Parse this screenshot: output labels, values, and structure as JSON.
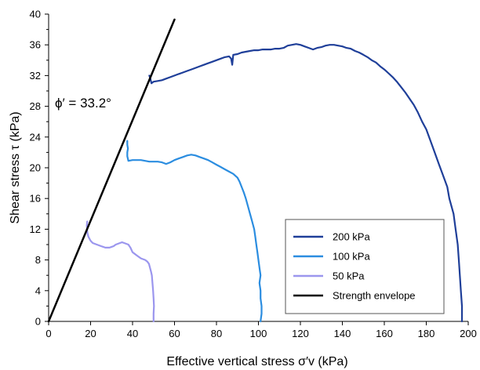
{
  "chart_data": {
    "type": "line",
    "xlabel": "Effective vertical stress σ′v (kPa)",
    "ylabel": "Shear stress τ (kPa)",
    "xlim": [
      0,
      200
    ],
    "ylim": [
      0,
      40
    ],
    "x_ticks": [
      0,
      20,
      40,
      60,
      80,
      100,
      120,
      140,
      160,
      180,
      200
    ],
    "y_ticks": [
      0,
      4,
      8,
      12,
      16,
      20,
      24,
      28,
      32,
      36,
      40
    ],
    "grid": false,
    "legend_position": "bottom-right",
    "annotation": "ϕ′ = 33.2°",
    "series": [
      {
        "name": "200 kPa",
        "color": "#1f3f99",
        "points": [
          [
            197,
            0
          ],
          [
            197,
            2
          ],
          [
            196.5,
            4
          ],
          [
            196,
            6
          ],
          [
            195.5,
            8
          ],
          [
            195,
            10
          ],
          [
            194,
            12
          ],
          [
            193,
            14
          ],
          [
            191,
            16
          ],
          [
            190,
            17.5
          ],
          [
            188,
            19
          ],
          [
            186,
            20.5
          ],
          [
            184,
            22
          ],
          [
            182,
            23.5
          ],
          [
            180,
            25
          ],
          [
            178,
            26
          ],
          [
            176,
            27.2
          ],
          [
            174,
            28.2
          ],
          [
            172,
            29
          ],
          [
            170,
            29.8
          ],
          [
            168,
            30.5
          ],
          [
            166,
            31.2
          ],
          [
            164,
            31.8
          ],
          [
            162,
            32.3
          ],
          [
            160,
            32.8
          ],
          [
            158,
            33.2
          ],
          [
            156,
            33.7
          ],
          [
            154,
            34
          ],
          [
            152,
            34.4
          ],
          [
            150,
            34.7
          ],
          [
            148,
            35
          ],
          [
            146,
            35.2
          ],
          [
            144,
            35.5
          ],
          [
            142,
            35.6
          ],
          [
            140,
            35.8
          ],
          [
            138,
            35.9
          ],
          [
            136,
            36
          ],
          [
            134,
            36
          ],
          [
            132,
            35.9
          ],
          [
            130,
            35.7
          ],
          [
            128,
            35.6
          ],
          [
            126,
            35.4
          ],
          [
            124,
            35.6
          ],
          [
            122,
            35.8
          ],
          [
            120,
            36
          ],
          [
            118,
            36.1
          ],
          [
            116,
            36
          ],
          [
            114,
            35.9
          ],
          [
            112,
            35.6
          ],
          [
            110,
            35.5
          ],
          [
            108,
            35.5
          ],
          [
            106,
            35.4
          ],
          [
            104,
            35.4
          ],
          [
            102,
            35.4
          ],
          [
            100,
            35.3
          ],
          [
            98,
            35.3
          ],
          [
            96,
            35.2
          ],
          [
            94,
            35.1
          ],
          [
            92,
            35
          ],
          [
            90,
            34.8
          ],
          [
            88,
            34.7
          ],
          [
            87.5,
            33.4
          ],
          [
            87,
            34.2
          ],
          [
            86,
            34.5
          ],
          [
            84,
            34.4
          ],
          [
            82,
            34.2
          ],
          [
            80,
            34
          ],
          [
            78,
            33.8
          ],
          [
            76,
            33.6
          ],
          [
            74,
            33.4
          ],
          [
            72,
            33.2
          ],
          [
            70,
            33
          ],
          [
            68,
            32.8
          ],
          [
            66,
            32.6
          ],
          [
            64,
            32.4
          ],
          [
            62,
            32.2
          ],
          [
            60,
            32
          ],
          [
            58,
            31.8
          ],
          [
            56,
            31.6
          ],
          [
            54,
            31.4
          ],
          [
            52,
            31.3
          ],
          [
            50,
            31.2
          ],
          [
            49,
            31
          ],
          [
            48.5,
            31.6
          ],
          [
            48,
            32
          ]
        ]
      },
      {
        "name": "100 kPa",
        "color": "#2b8de0",
        "points": [
          [
            101,
            0
          ],
          [
            101.5,
            1
          ],
          [
            101.5,
            2
          ],
          [
            101,
            3
          ],
          [
            101,
            4
          ],
          [
            100.5,
            5
          ],
          [
            101,
            6
          ],
          [
            100.5,
            7
          ],
          [
            100,
            8
          ],
          [
            99.5,
            9
          ],
          [
            99,
            10
          ],
          [
            98.5,
            11
          ],
          [
            98,
            12
          ],
          [
            97,
            13
          ],
          [
            96,
            14
          ],
          [
            95,
            15
          ],
          [
            94,
            16
          ],
          [
            93,
            16.8
          ],
          [
            92,
            17.5
          ],
          [
            91,
            18.2
          ],
          [
            90,
            18.7
          ],
          [
            88,
            19.2
          ],
          [
            86,
            19.5
          ],
          [
            84,
            19.8
          ],
          [
            82,
            20.1
          ],
          [
            80,
            20.4
          ],
          [
            78,
            20.7
          ],
          [
            76,
            21
          ],
          [
            74,
            21.2
          ],
          [
            72,
            21.4
          ],
          [
            70,
            21.6
          ],
          [
            68,
            21.7
          ],
          [
            66,
            21.6
          ],
          [
            64,
            21.4
          ],
          [
            62,
            21.2
          ],
          [
            60,
            21
          ],
          [
            58,
            20.7
          ],
          [
            56,
            20.5
          ],
          [
            54,
            20.7
          ],
          [
            52,
            20.8
          ],
          [
            50,
            20.8
          ],
          [
            48,
            20.8
          ],
          [
            46,
            20.9
          ],
          [
            44,
            21
          ],
          [
            42,
            21
          ],
          [
            40,
            21
          ],
          [
            38,
            20.9
          ],
          [
            37.5,
            21.5
          ],
          [
            37.5,
            22
          ],
          [
            37.8,
            22.5
          ],
          [
            37.5,
            23
          ],
          [
            37.5,
            23.5
          ]
        ]
      },
      {
        "name": "50 kPa",
        "color": "#9b96ee",
        "points": [
          [
            50,
            0
          ],
          [
            50,
            1
          ],
          [
            50.2,
            2
          ],
          [
            50,
            3
          ],
          [
            49.8,
            4
          ],
          [
            49.5,
            5
          ],
          [
            49.2,
            6
          ],
          [
            48.8,
            6.5
          ],
          [
            48.3,
            7
          ],
          [
            47.8,
            7.5
          ],
          [
            47,
            7.8
          ],
          [
            46,
            8
          ],
          [
            45,
            8.1
          ],
          [
            44,
            8.2
          ],
          [
            43,
            8.4
          ],
          [
            42,
            8.6
          ],
          [
            41,
            8.8
          ],
          [
            40,
            9
          ],
          [
            39.5,
            9.3
          ],
          [
            39,
            9.6
          ],
          [
            38.5,
            9.8
          ],
          [
            38,
            10
          ],
          [
            37,
            10.1
          ],
          [
            36,
            10.2
          ],
          [
            35,
            10.3
          ],
          [
            34,
            10.2
          ],
          [
            33,
            10.1
          ],
          [
            32,
            10
          ],
          [
            31,
            9.8
          ],
          [
            30,
            9.7
          ],
          [
            29,
            9.6
          ],
          [
            28,
            9.6
          ],
          [
            27,
            9.6
          ],
          [
            26,
            9.7
          ],
          [
            25,
            9.8
          ],
          [
            24,
            9.9
          ],
          [
            23,
            10
          ],
          [
            22,
            10.1
          ],
          [
            21,
            10.2
          ],
          [
            20,
            10.5
          ],
          [
            19,
            11
          ],
          [
            18.5,
            11.5
          ],
          [
            18.3,
            12
          ],
          [
            18.2,
            12.5
          ],
          [
            18.4,
            13
          ]
        ]
      },
      {
        "name": "Strength envelope",
        "color": "#000000",
        "points": [
          [
            0,
            0
          ],
          [
            60,
            39.3
          ]
        ]
      }
    ]
  }
}
